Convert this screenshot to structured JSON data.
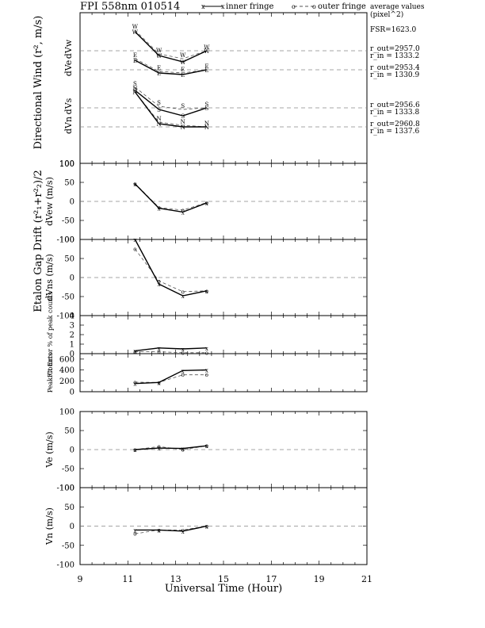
{
  "figure": {
    "title": "FPI 558nm 010514",
    "legend": {
      "inner_marker": "x",
      "inner_label": "inner fringe",
      "outer_marker": "o",
      "outer_label": "outer fringe"
    },
    "average_values_label": "average values",
    "average_values_unit": "(pixel^2)",
    "fsr": "FSR=1623.0",
    "radii": [
      {
        "r_out": "r_out=2957.0",
        "r_in": "r_in = 1333.2"
      },
      {
        "r_out": "r_out=2953.4",
        "r_in": "r_in = 1330.9"
      },
      {
        "r_out": "r_out=2956.6",
        "r_in": "r_in = 1333.8"
      },
      {
        "r_out": "r_out=2960.8",
        "r_in": "r_in = 1337.6"
      }
    ],
    "xlabel": "Universal Time (Hour)",
    "big_label_1": "Directional Wind (r², m/s)",
    "big_label_2": "Etalon Gap Drift (r²₁+r²₂)/2",
    "colors": {
      "line": "#000000",
      "dashed": "#555555",
      "zero_line": "#888888"
    }
  },
  "chart_data": [
    {
      "type": "line",
      "panel": "directional-wind",
      "direction_labels": [
        "dVw",
        "dVe",
        "dVs",
        "dVn"
      ],
      "x": [
        11.3,
        12.3,
        13.3,
        14.3
      ],
      "ylim": [
        0,
        100
      ],
      "series": [
        {
          "name": "dVw",
          "marker": "W",
          "inner": [
            42,
            27,
            23,
            30
          ],
          "outer": [
            43,
            28,
            25,
            30
          ]
        },
        {
          "name": "dVe",
          "marker": "E",
          "inner": [
            30,
            22,
            21,
            24
          ],
          "outer": [
            31,
            23,
            22,
            24
          ]
        },
        {
          "name": "dVs",
          "marker": "S",
          "inner": [
            19,
            7,
            3,
            8
          ],
          "outer": [
            21,
            9,
            7,
            8
          ]
        },
        {
          "name": "dVn",
          "marker": "N",
          "inner": [
            19,
            -1,
            -3,
            -3
          ],
          "outer": [
            19,
            0,
            -2,
            -3
          ]
        }
      ],
      "ytick_labels": [
        "100"
      ],
      "ylabel": ""
    },
    {
      "type": "line",
      "panel": "dVew",
      "x": [
        11.3,
        12.3,
        13.3,
        14.3
      ],
      "inner": [
        46,
        -18,
        -28,
        -4
      ],
      "outer": [
        47,
        -16,
        -23,
        -3
      ],
      "ylim": [
        -100,
        100
      ],
      "ytick_labels": [
        "100",
        "50",
        "0",
        "-50",
        "-100"
      ],
      "ylabel": "dVew (m/s)"
    },
    {
      "type": "line",
      "panel": "dVns",
      "x": [
        11.3,
        12.3,
        13.3,
        14.3
      ],
      "inner": [
        100,
        -17,
        -48,
        -35
      ],
      "outer": [
        75,
        -9,
        -37,
        -35
      ],
      "ylim": [
        -100,
        100
      ],
      "ytick_labels": [
        "100",
        "50",
        "0",
        "-50",
        "-100"
      ],
      "ylabel": "dVns (m/s)"
    },
    {
      "type": "line",
      "panel": "fit-error",
      "x": [
        11.3,
        12.3,
        13.3,
        14.3
      ],
      "inner": [
        0.3,
        0.6,
        0.5,
        0.6
      ],
      "outer": [
        0.2,
        0.2,
        0.1,
        0.1
      ],
      "ylim": [
        0,
        4
      ],
      "ytick_labels": [
        "4",
        "3",
        "2",
        "1",
        "0"
      ],
      "ylabel": "Fit Error % of peak counts"
    },
    {
      "type": "line",
      "panel": "peak-counts",
      "x": [
        11.3,
        12.3,
        13.3,
        14.3
      ],
      "inner": [
        150,
        170,
        390,
        400
      ],
      "outer": [
        175,
        170,
        310,
        310
      ],
      "ylim": [
        0,
        700
      ],
      "ytick_labels": [
        "600",
        "400",
        "200",
        "0"
      ],
      "ylabel": "Peak Counts"
    },
    {
      "type": "line",
      "panel": "ve",
      "x": [
        11.3,
        12.3,
        13.3,
        14.3
      ],
      "inner": [
        0,
        4,
        3,
        10
      ],
      "outer": [
        0,
        8,
        0,
        10
      ],
      "ylim": [
        -100,
        100
      ],
      "ytick_labels": [
        "100",
        "50",
        "0",
        "-50",
        "-100"
      ],
      "ylabel": "Ve (m/s)"
    },
    {
      "type": "line",
      "panel": "vn",
      "x": [
        11.3,
        12.3,
        13.3,
        14.3
      ],
      "inner": [
        -10,
        -10,
        -13,
        0
      ],
      "outer": [
        -20,
        -10,
        -10,
        0
      ],
      "ylim": [
        -100,
        100
      ],
      "ytick_labels": [
        "100",
        "50",
        "0",
        "-50",
        "-100"
      ],
      "ylabel": "Vn (m/s)"
    }
  ],
  "x_axis": {
    "range": [
      9,
      21
    ],
    "tick_labels": [
      "9",
      "11",
      "13",
      "15",
      "17",
      "19",
      "21"
    ]
  }
}
